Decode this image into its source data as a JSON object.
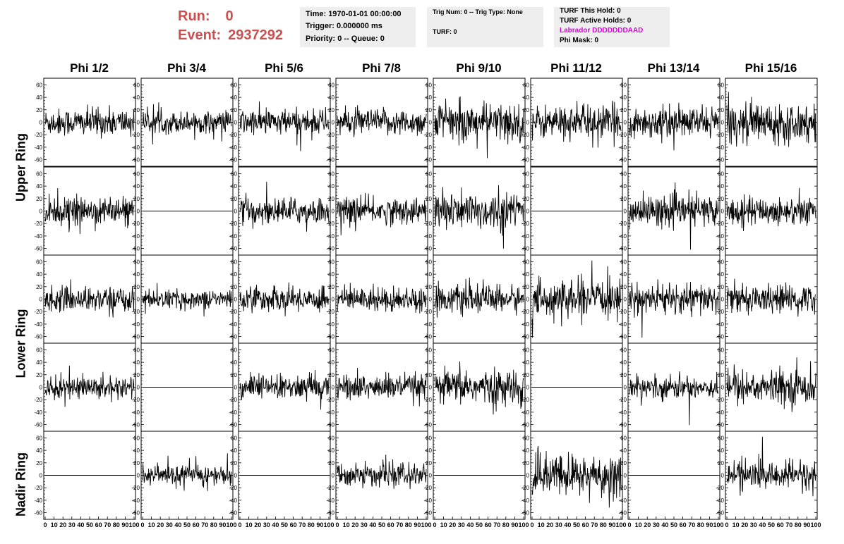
{
  "run": {
    "run_label": "Run:",
    "run_value": "0",
    "event_label": "Event:",
    "event_value": "2937292"
  },
  "info_time": {
    "time": "Time: 1970-01-01 00:00:00",
    "trigger": "Trigger: 0.000000 ms",
    "priority": "Priority: 0 -- Queue: 0"
  },
  "info_trig": {
    "trig": "Trig Num: 0 -- Trig Type: None",
    "turf": "TURF: 0"
  },
  "info_turf": {
    "hold": "TURF This Hold: 0",
    "active": "TURF Active Holds: 0",
    "labrador": "Labrador DDDDDDDAAD",
    "phimask": "Phi Mask: 0"
  },
  "phi_headers": [
    "Phi 1/2",
    "Phi 3/4",
    "Phi 5/6",
    "Phi 7/8",
    "Phi 9/10",
    "Phi 11/12",
    "Phi 13/14",
    "Phi 15/16"
  ],
  "ring_labels": [
    "Upper Ring",
    "Lower Ring",
    "Nadir Ring"
  ],
  "y_ticks": [
    "60",
    "40",
    "20",
    "0",
    "-20",
    "-40",
    "-60"
  ],
  "x_ticks": [
    "0",
    "10",
    "20",
    "30",
    "40",
    "50",
    "60",
    "70",
    "80",
    "90",
    "100"
  ],
  "colors": {
    "run_text": "#c85050",
    "labrador": "#e000e0",
    "info_bg": "#eeeeee",
    "trace": "#000000"
  },
  "chart_data": {
    "type": "line",
    "ylim": [
      -65,
      65
    ],
    "xlim": [
      0,
      100
    ],
    "grid": false,
    "panel_amplitudes": [
      [
        18,
        14,
        17,
        17,
        25,
        22,
        20,
        25
      ],
      [
        18,
        0,
        17,
        17,
        25,
        0,
        20,
        18
      ],
      [
        16,
        12,
        16,
        16,
        18,
        23,
        20,
        18
      ],
      [
        15,
        0,
        16,
        17,
        22,
        0,
        15,
        22
      ],
      [
        0,
        13,
        0,
        15,
        0,
        28,
        0,
        18
      ]
    ],
    "note_flat": "panels with amplitude 0 show a flat trace at y=0"
  }
}
